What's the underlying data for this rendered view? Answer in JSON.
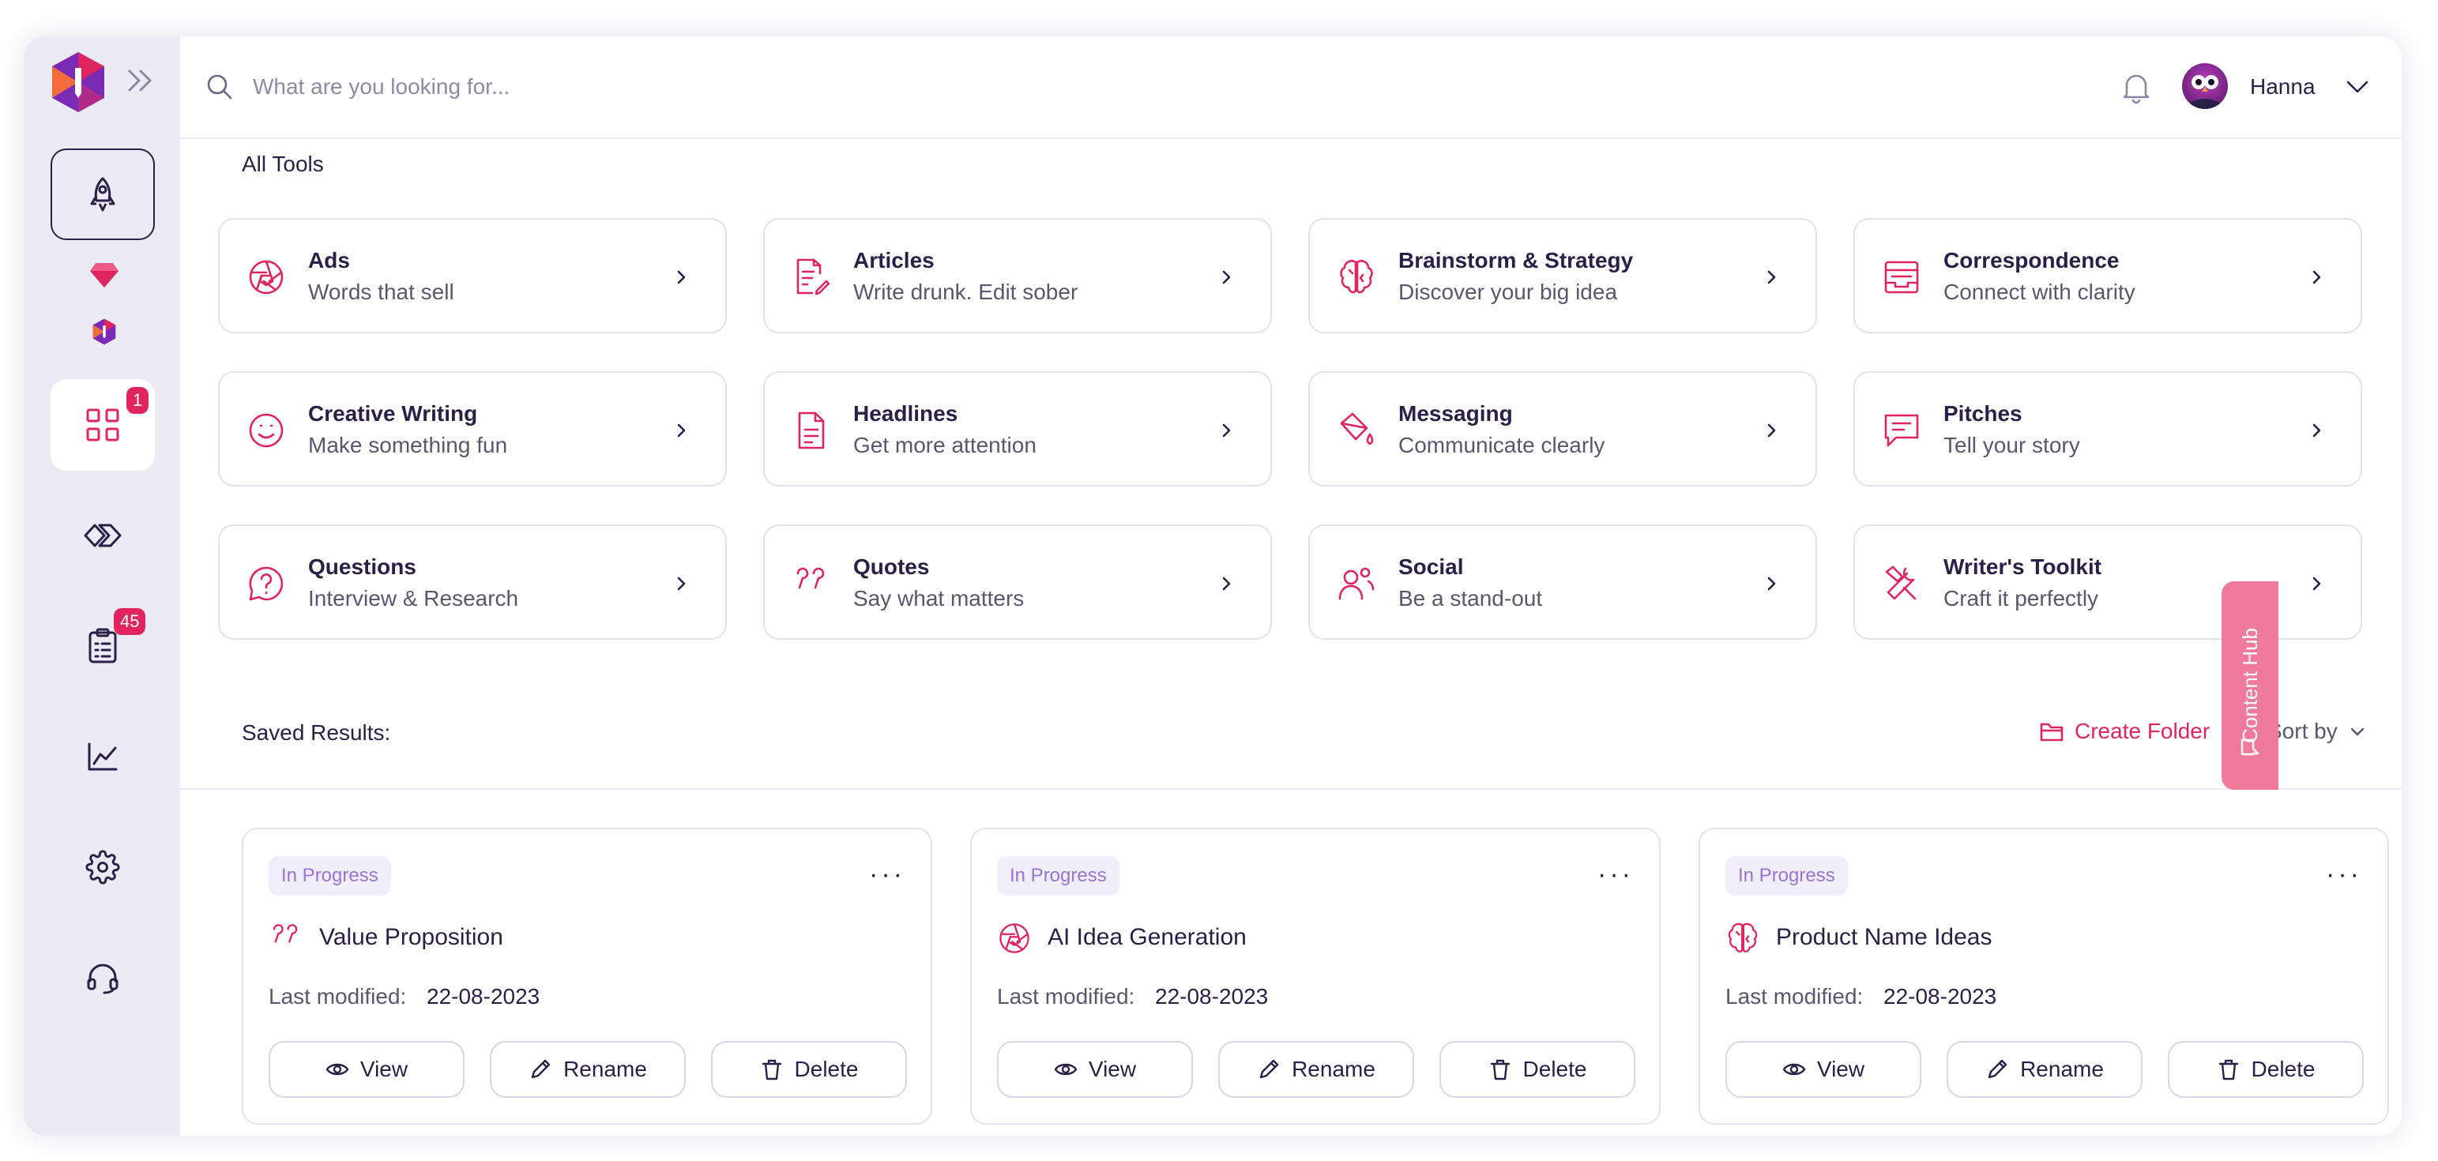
{
  "header": {
    "search_placeholder": "What are you looking for...",
    "username": "Hanna"
  },
  "sidebar": {
    "badges": {
      "tools": "1",
      "documents": "45"
    }
  },
  "all_tools": {
    "title": "All Tools",
    "tools": [
      {
        "title": "Ads",
        "subtitle": "Words that sell",
        "icon": "aperture-icon"
      },
      {
        "title": "Articles",
        "subtitle": "Write drunk. Edit sober",
        "icon": "article-edit-icon"
      },
      {
        "title": "Brainstorm & Strategy",
        "subtitle": "Discover your big idea",
        "icon": "brain-icon"
      },
      {
        "title": "Correspondence",
        "subtitle": "Connect with clarity",
        "icon": "inbox-icon"
      },
      {
        "title": "Creative Writing",
        "subtitle": "Make something fun",
        "icon": "smile-icon"
      },
      {
        "title": "Headlines",
        "subtitle": "Get more attention",
        "icon": "document-icon"
      },
      {
        "title": "Messaging",
        "subtitle": "Communicate clearly",
        "icon": "paint-bucket-icon"
      },
      {
        "title": "Pitches",
        "subtitle": "Tell your story",
        "icon": "message-square-icon"
      },
      {
        "title": "Questions",
        "subtitle": "Interview & Research",
        "icon": "help-circle-icon"
      },
      {
        "title": "Quotes",
        "subtitle": "Say what matters",
        "icon": "quote-icon"
      },
      {
        "title": "Social",
        "subtitle": "Be a stand-out",
        "icon": "users-icon"
      },
      {
        "title": "Writer's Toolkit",
        "subtitle": "Craft it perfectly",
        "icon": "tools-icon"
      }
    ]
  },
  "saved": {
    "title": "Saved Results:",
    "create_folder": "Create Folder",
    "sort_by": "Sort by",
    "results": [
      {
        "status": "In Progress",
        "title": "Value Proposition",
        "icon": "quote-icon",
        "modified_label": "Last modified:",
        "modified": "22-08-2023",
        "view": "View",
        "rename": "Rename",
        "delete": "Delete"
      },
      {
        "status": "In Progress",
        "title": "AI Idea Generation",
        "icon": "aperture-icon",
        "modified_label": "Last modified:",
        "modified": "22-08-2023",
        "view": "View",
        "rename": "Rename",
        "delete": "Delete"
      },
      {
        "status": "In Progress",
        "title": "Product Name Ideas",
        "icon": "brain-icon",
        "modified_label": "Last modified:",
        "modified": "22-08-2023",
        "view": "View",
        "rename": "Rename",
        "delete": "Delete"
      }
    ]
  },
  "content_hub": {
    "label": "Content Hub"
  },
  "colors": {
    "accent": "#e0245e",
    "text": "#2a1f47",
    "muted": "#5b5670",
    "badge_bg": "#f1eefb",
    "badge_text": "#9a73d6",
    "hub": "#f07a9c",
    "sidebar_bg": "#eceaf5"
  }
}
